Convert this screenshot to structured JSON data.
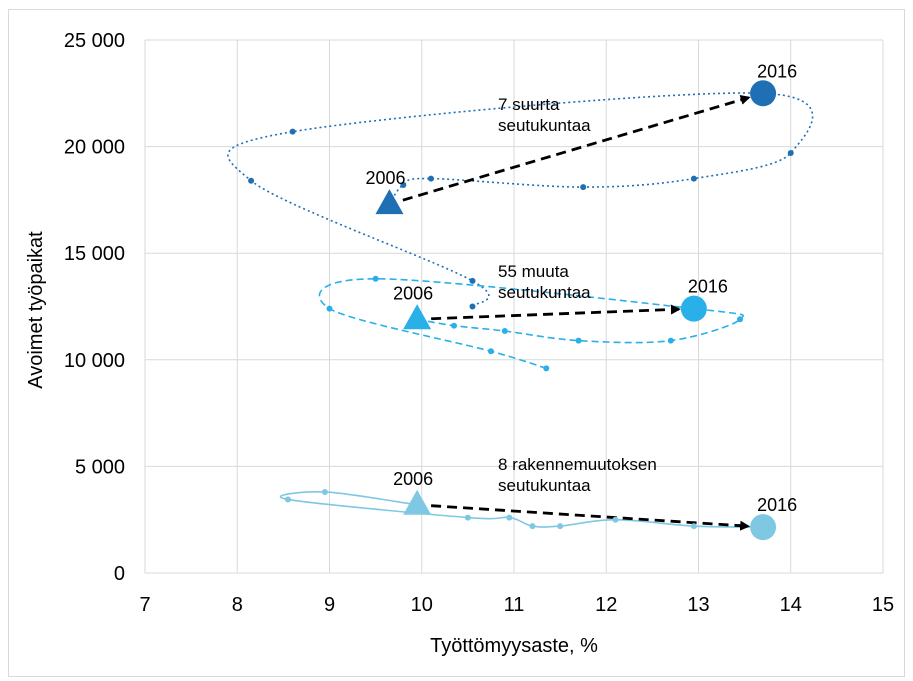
{
  "chart_data": {
    "type": "scatter",
    "title": "",
    "xlabel": "Työttömyysaste, %",
    "ylabel": "Avoimet  työpaikat",
    "xlim": [
      7,
      15
    ],
    "ylim": [
      0,
      25000
    ],
    "x_ticks": [
      "7",
      "8",
      "9",
      "10",
      "11",
      "12",
      "13",
      "14",
      "15"
    ],
    "y_ticks": [
      "0",
      "5 000",
      "10 000",
      "15 000",
      "20 000",
      "25 000"
    ],
    "grid": true,
    "legend": "none",
    "series": [
      {
        "name": "7 suurta seutukuntaa",
        "color": "#1f6fb5",
        "line_style": "dotted",
        "points": [
          {
            "x": 9.65,
            "y": 17300
          },
          {
            "x": 9.8,
            "y": 18200
          },
          {
            "x": 10.1,
            "y": 18500
          },
          {
            "x": 11.75,
            "y": 18100
          },
          {
            "x": 12.95,
            "y": 18500
          },
          {
            "x": 14.0,
            "y": 19700
          },
          {
            "x": 13.7,
            "y": 22500
          },
          {
            "x": 8.6,
            "y": 20700
          },
          {
            "x": 8.15,
            "y": 18400
          },
          {
            "x": 10.55,
            "y": 13700
          },
          {
            "x": 10.55,
            "y": 12500
          }
        ],
        "start": {
          "x": 9.65,
          "y": 17300
        },
        "end": {
          "x": 13.7,
          "y": 22500
        }
      },
      {
        "name": "55 muuta seutukuntaa",
        "color": "#29b0e8",
        "line_style": "dashed",
        "points": [
          {
            "x": 9.95,
            "y": 11900
          },
          {
            "x": 10.35,
            "y": 11600
          },
          {
            "x": 10.9,
            "y": 11350
          },
          {
            "x": 11.7,
            "y": 10900
          },
          {
            "x": 12.7,
            "y": 10900
          },
          {
            "x": 13.45,
            "y": 11900
          },
          {
            "x": 12.95,
            "y": 12400
          },
          {
            "x": 9.5,
            "y": 13800
          },
          {
            "x": 9.0,
            "y": 12400
          },
          {
            "x": 10.75,
            "y": 10400
          },
          {
            "x": 11.35,
            "y": 9600
          }
        ],
        "start": {
          "x": 9.95,
          "y": 11900
        },
        "end": {
          "x": 12.95,
          "y": 12400
        }
      },
      {
        "name": "8 rakennemuutoksen seutukuntaa",
        "color": "#7ec8e3",
        "line_style": "solid",
        "points": [
          {
            "x": 9.95,
            "y": 3200
          },
          {
            "x": 8.95,
            "y": 3800
          },
          {
            "x": 8.55,
            "y": 3450
          },
          {
            "x": 10.5,
            "y": 2600
          },
          {
            "x": 10.95,
            "y": 2600
          },
          {
            "x": 11.2,
            "y": 2200
          },
          {
            "x": 11.5,
            "y": 2200
          },
          {
            "x": 12.1,
            "y": 2500
          },
          {
            "x": 12.95,
            "y": 2200
          },
          {
            "x": 13.7,
            "y": 2150
          }
        ],
        "start": {
          "x": 9.95,
          "y": 3200
        },
        "end": {
          "x": 13.7,
          "y": 2150
        }
      }
    ],
    "annotations": [
      {
        "id": "label-7-suurta",
        "lines": [
          "7 suurta",
          "seutukuntaa"
        ]
      },
      {
        "id": "label-55-muuta",
        "lines": [
          "55 muuta",
          "seutukuntaa"
        ]
      },
      {
        "id": "label-8-rakenne",
        "lines": [
          "8 rakennemuutoksen",
          "seutukuntaa"
        ]
      }
    ],
    "year_labels": {
      "start": "2006",
      "end": "2016"
    }
  }
}
